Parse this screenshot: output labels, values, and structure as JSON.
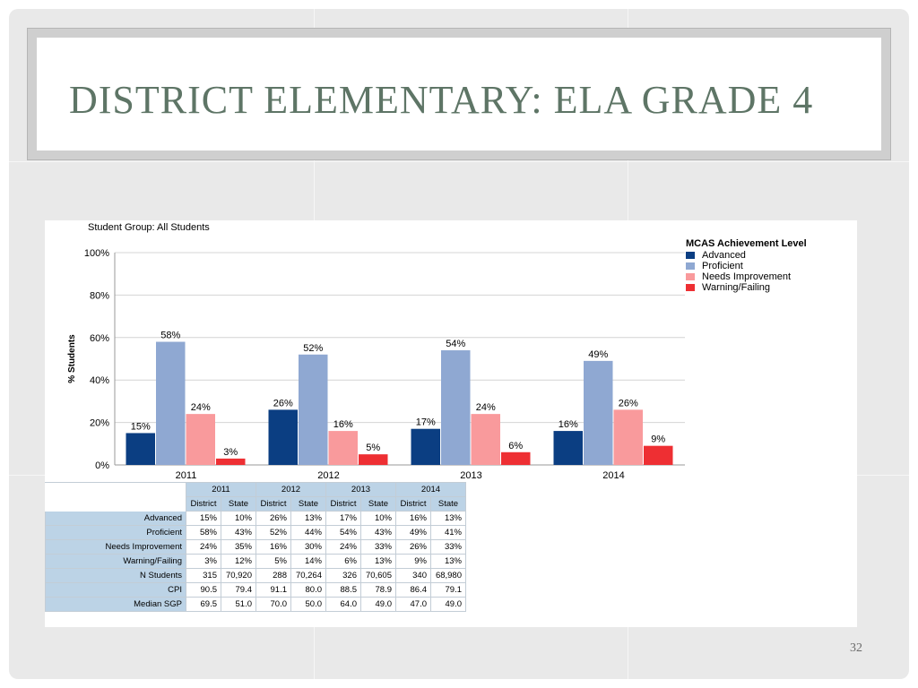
{
  "slide": {
    "title": "DISTRICT ELEMENTARY:  ELA GRADE 4",
    "page_number": "32",
    "student_group": "Student Group: All Students"
  },
  "legend": {
    "title": "MCAS Achievement Level",
    "items": [
      {
        "label": "Advanced",
        "color": "#0b3e82"
      },
      {
        "label": "Proficient",
        "color": "#8fa8d2"
      },
      {
        "label": "Needs Improvement",
        "color": "#f99a9c"
      },
      {
        "label": "Warning/Failing",
        "color": "#ee2f33"
      }
    ]
  },
  "chart_data": {
    "type": "bar",
    "categories": [
      "2011",
      "2012",
      "2013",
      "2014"
    ],
    "series": [
      {
        "name": "Advanced",
        "values": [
          15,
          26,
          17,
          16
        ],
        "color": "#0b3e82"
      },
      {
        "name": "Proficient",
        "values": [
          58,
          52,
          54,
          49
        ],
        "color": "#8fa8d2"
      },
      {
        "name": "Needs Improvement",
        "values": [
          24,
          16,
          24,
          26
        ],
        "color": "#f99a9c"
      },
      {
        "name": "Warning/Failing",
        "values": [
          3,
          5,
          6,
          9
        ],
        "color": "#ee2f33"
      }
    ],
    "data_labels": [
      [
        "15%",
        "26%",
        "17%",
        "16%"
      ],
      [
        "58%",
        "52%",
        "54%",
        "49%"
      ],
      [
        "24%",
        "16%",
        "24%",
        "26%"
      ],
      [
        "3%",
        "5%",
        "6%",
        "9%"
      ]
    ],
    "ylabel": "% Students",
    "ylim": [
      0,
      100
    ],
    "yticks": [
      0,
      20,
      40,
      60,
      80,
      100
    ],
    "ytick_labels": [
      "0%",
      "20%",
      "40%",
      "60%",
      "80%",
      "100%"
    ],
    "grid": true,
    "legend_position": "top-right"
  },
  "table": {
    "years": [
      "2011",
      "2012",
      "2013",
      "2014"
    ],
    "subheaders": [
      "District",
      "State",
      "District",
      "State",
      "District",
      "State",
      "District",
      "State"
    ],
    "rows": [
      {
        "label": "Advanced",
        "values": [
          "15%",
          "10%",
          "26%",
          "13%",
          "17%",
          "10%",
          "16%",
          "13%"
        ]
      },
      {
        "label": "Proficient",
        "values": [
          "58%",
          "43%",
          "52%",
          "44%",
          "54%",
          "43%",
          "49%",
          "41%"
        ]
      },
      {
        "label": "Needs Improvement",
        "values": [
          "24%",
          "35%",
          "16%",
          "30%",
          "24%",
          "33%",
          "26%",
          "33%"
        ]
      },
      {
        "label": "Warning/Failing",
        "values": [
          "3%",
          "12%",
          "5%",
          "14%",
          "6%",
          "13%",
          "9%",
          "13%"
        ]
      },
      {
        "label": "N Students",
        "values": [
          "315",
          "70,920",
          "288",
          "70,264",
          "326",
          "70,605",
          "340",
          "68,980"
        ]
      },
      {
        "label": "CPI",
        "values": [
          "90.5",
          "79.4",
          "91.1",
          "80.0",
          "88.5",
          "78.9",
          "86.4",
          "79.1"
        ]
      },
      {
        "label": "Median SGP",
        "values": [
          "69.5",
          "51.0",
          "70.0",
          "50.0",
          "64.0",
          "49.0",
          "47.0",
          "49.0"
        ]
      }
    ]
  }
}
